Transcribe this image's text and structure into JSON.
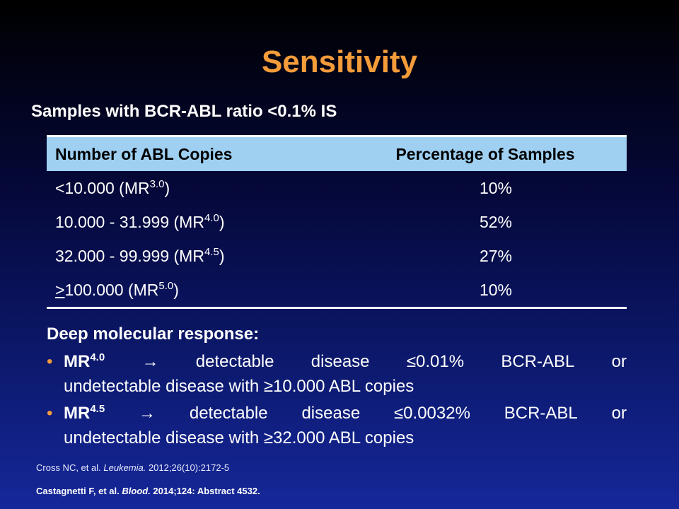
{
  "title": "Sensitivity",
  "subtitle": "Samples with BCR-ABL ratio <0.1% IS",
  "table": {
    "headers": [
      "Number of ABL Copies",
      "Percentage of Samples"
    ],
    "rows": [
      {
        "prefix": "",
        "base": "<10.000 (MR",
        "sup": "3.0",
        "suffix": ")",
        "percent": "10%"
      },
      {
        "prefix": "",
        "base": "10.000 - 31.999 (MR",
        "sup": "4.0",
        "suffix": ")",
        "percent": "52%"
      },
      {
        "prefix": "",
        "base": "32.000 - 99.999 (MR",
        "sup": "4.5",
        "suffix": ")",
        "percent": "27%"
      },
      {
        "prefix": ">",
        "base": "100.000 (MR",
        "sup": "5.0",
        "suffix": ")",
        "percent": "10%"
      }
    ]
  },
  "deep_response": {
    "heading": "Deep molecular response:",
    "bullet_color": "#f49b3a",
    "bullets": [
      {
        "mr": "MR",
        "sup": "4.0",
        "line1_words": [
          "→",
          "detectable",
          "disease",
          "≤0.01%",
          "BCR-ABL",
          "or"
        ],
        "line2": "undetectable disease with ≥10.000 ABL copies"
      },
      {
        "mr": "MR",
        "sup": "4.5",
        "line1_words": [
          "→",
          "detectable",
          "disease",
          "≤0.0032%",
          "BCR-ABL",
          "or"
        ],
        "line2": "undetectable disease with ≥32.000 ABL copies"
      }
    ]
  },
  "references": {
    "ref1_pre": "Cross NC, et al. ",
    "ref1_journal": "Leukemia.",
    "ref1_post": " 2012;26(10):2172-5",
    "ref2_pre": "Castagnetti F, et al. ",
    "ref2_journal": "Blood.",
    "ref2_post": " 2014;124: Abstract 4532."
  },
  "colors": {
    "title": "#f49b3a",
    "table_header_bg": "#9fd0f2",
    "background_bottom": "#16279a"
  }
}
